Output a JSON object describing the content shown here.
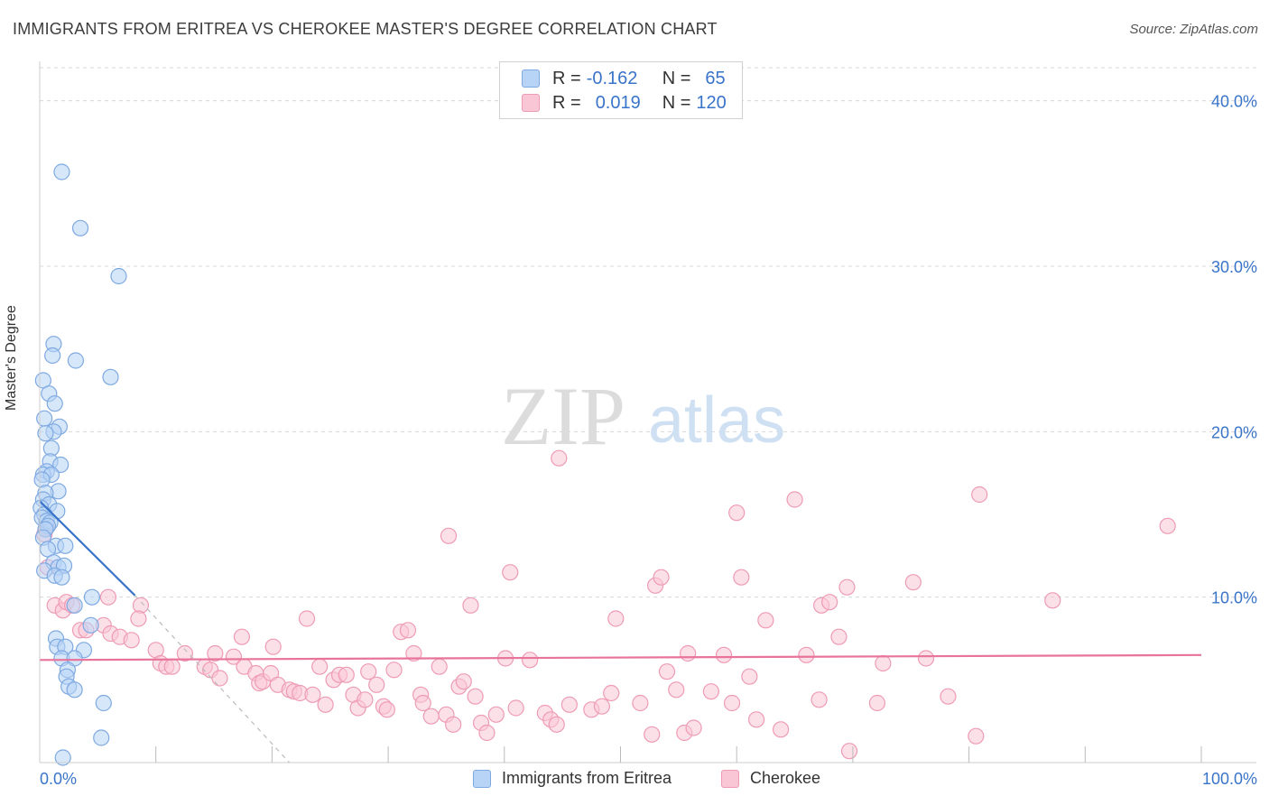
{
  "title": "IMMIGRANTS FROM ERITREA VS CHEROKEE MASTER'S DEGREE CORRELATION CHART",
  "source": "Source: ZipAtlas.com",
  "watermark": {
    "zip": "ZIP",
    "atlas": "atlas"
  },
  "legend": {
    "r_label": "R =",
    "n_label": "N =",
    "rows": [
      {
        "r": "-0.162",
        "n": "65",
        "fill": "#b7d3f6",
        "stroke": "#7ea9e1"
      },
      {
        "r": "0.019",
        "n": "120",
        "fill": "#f9c6d5",
        "stroke": "#ee9bb5"
      }
    ]
  },
  "bottom_legend": [
    {
      "label": "Immigrants from Eritrea",
      "fill": "#b7d3f6",
      "stroke": "#7ea9e1"
    },
    {
      "label": "Cherokee",
      "fill": "#f9c6d5",
      "stroke": "#ee9bb5"
    }
  ],
  "chart_data": {
    "type": "scatter",
    "ylabel": "Master's Degree",
    "xlim": [
      0,
      100
    ],
    "ylim": [
      0,
      42
    ],
    "x_tick_labels": [
      "0.0%",
      "100.0%"
    ],
    "y_ticks": [
      10,
      20,
      30,
      40
    ],
    "y_tick_labels": [
      "10.0%",
      "20.0%",
      "30.0%",
      "40.0%"
    ],
    "grid": true,
    "legend_placement": "top-center",
    "colors": {
      "blue": "#3a74c9",
      "pink": "#e8749b",
      "tick_text": "#3a74c9"
    },
    "series": [
      {
        "name": "Immigrants from Eritrea",
        "color": "#7ea9e1",
        "fill": "#b7d3f6",
        "points": [
          [
            1.9,
            35.7
          ],
          [
            3.5,
            32.3
          ],
          [
            6.8,
            29.4
          ],
          [
            1.2,
            25.3
          ],
          [
            1.1,
            24.6
          ],
          [
            3.1,
            24.3
          ],
          [
            6.1,
            23.3
          ],
          [
            0.3,
            23.1
          ],
          [
            0.8,
            22.3
          ],
          [
            1.3,
            21.7
          ],
          [
            0.4,
            20.8
          ],
          [
            1.7,
            20.3
          ],
          [
            1.2,
            20.0
          ],
          [
            0.5,
            19.9
          ],
          [
            1.0,
            19.0
          ],
          [
            0.9,
            18.2
          ],
          [
            1.8,
            18.0
          ],
          [
            0.6,
            17.6
          ],
          [
            0.3,
            17.4
          ],
          [
            1.0,
            17.4
          ],
          [
            0.2,
            17.1
          ],
          [
            1.6,
            16.4
          ],
          [
            0.5,
            16.3
          ],
          [
            0.3,
            15.9
          ],
          [
            0.8,
            15.6
          ],
          [
            0.1,
            15.4
          ],
          [
            1.5,
            15.2
          ],
          [
            0.4,
            15.0
          ],
          [
            0.2,
            14.8
          ],
          [
            0.6,
            14.6
          ],
          [
            0.9,
            14.5
          ],
          [
            0.7,
            14.3
          ],
          [
            0.5,
            14.1
          ],
          [
            0.3,
            13.6
          ],
          [
            1.4,
            13.1
          ],
          [
            2.2,
            13.1
          ],
          [
            0.7,
            12.9
          ],
          [
            1.2,
            12.1
          ],
          [
            1.6,
            11.8
          ],
          [
            2.1,
            11.9
          ],
          [
            0.4,
            11.6
          ],
          [
            1.3,
            11.3
          ],
          [
            1.9,
            11.2
          ],
          [
            4.5,
            10.0
          ],
          [
            3.0,
            9.5
          ],
          [
            4.4,
            8.3
          ],
          [
            1.4,
            7.5
          ],
          [
            1.5,
            7.0
          ],
          [
            2.2,
            7.0
          ],
          [
            3.8,
            6.8
          ],
          [
            1.9,
            6.3
          ],
          [
            3.0,
            6.3
          ],
          [
            2.4,
            5.6
          ],
          [
            2.3,
            5.2
          ],
          [
            2.5,
            4.6
          ],
          [
            3.0,
            4.4
          ],
          [
            5.5,
            3.6
          ],
          [
            5.3,
            1.5
          ],
          [
            2.0,
            0.3
          ]
        ]
      },
      {
        "name": "Cherokee",
        "color": "#ee9bb5",
        "fill": "#f9c6d5",
        "points": [
          [
            0.6,
            14.2
          ],
          [
            0.4,
            13.8
          ],
          [
            0.7,
            11.8
          ],
          [
            1.3,
            9.5
          ],
          [
            2.0,
            9.2
          ],
          [
            2.3,
            9.7
          ],
          [
            2.8,
            9.5
          ],
          [
            5.9,
            10.0
          ],
          [
            8.7,
            9.5
          ],
          [
            8.5,
            8.7
          ],
          [
            3.5,
            8.0
          ],
          [
            4.0,
            8.0
          ],
          [
            5.5,
            8.3
          ],
          [
            6.1,
            7.8
          ],
          [
            6.9,
            7.6
          ],
          [
            7.9,
            7.4
          ],
          [
            10.0,
            6.8
          ],
          [
            10.4,
            6.0
          ],
          [
            10.9,
            5.8
          ],
          [
            11.4,
            5.8
          ],
          [
            12.5,
            6.6
          ],
          [
            14.2,
            5.8
          ],
          [
            14.7,
            5.6
          ],
          [
            15.5,
            5.1
          ],
          [
            15.1,
            6.6
          ],
          [
            16.7,
            6.4
          ],
          [
            17.4,
            7.6
          ],
          [
            17.6,
            5.8
          ],
          [
            18.6,
            5.4
          ],
          [
            18.9,
            4.8
          ],
          [
            19.2,
            4.9
          ],
          [
            19.9,
            5.4
          ],
          [
            20.5,
            4.7
          ],
          [
            20.1,
            7.0
          ],
          [
            21.5,
            4.4
          ],
          [
            21.9,
            4.3
          ],
          [
            22.4,
            4.2
          ],
          [
            23.0,
            8.7
          ],
          [
            23.5,
            4.1
          ],
          [
            24.1,
            5.8
          ],
          [
            24.6,
            3.5
          ],
          [
            25.3,
            5.0
          ],
          [
            25.8,
            5.3
          ],
          [
            26.4,
            5.3
          ],
          [
            27.0,
            4.1
          ],
          [
            27.4,
            3.3
          ],
          [
            28.0,
            3.8
          ],
          [
            28.3,
            5.5
          ],
          [
            29.0,
            4.7
          ],
          [
            29.6,
            3.4
          ],
          [
            29.9,
            3.2
          ],
          [
            30.5,
            5.6
          ],
          [
            31.1,
            7.9
          ],
          [
            31.7,
            8.0
          ],
          [
            32.2,
            6.6
          ],
          [
            32.8,
            4.1
          ],
          [
            33.0,
            3.6
          ],
          [
            33.7,
            2.8
          ],
          [
            34.4,
            5.8
          ],
          [
            35.0,
            2.9
          ],
          [
            35.2,
            13.7
          ],
          [
            35.6,
            2.3
          ],
          [
            36.1,
            4.6
          ],
          [
            36.5,
            4.9
          ],
          [
            37.1,
            9.5
          ],
          [
            37.5,
            4.0
          ],
          [
            38.0,
            2.4
          ],
          [
            38.5,
            1.8
          ],
          [
            39.3,
            2.9
          ],
          [
            40.1,
            6.3
          ],
          [
            40.5,
            11.5
          ],
          [
            41.0,
            3.3
          ],
          [
            42.2,
            6.2
          ],
          [
            43.5,
            3.0
          ],
          [
            44.0,
            2.6
          ],
          [
            44.5,
            2.3
          ],
          [
            44.7,
            18.4
          ],
          [
            45.6,
            3.5
          ],
          [
            47.5,
            3.2
          ],
          [
            48.4,
            3.4
          ],
          [
            49.2,
            4.2
          ],
          [
            49.6,
            8.7
          ],
          [
            51.7,
            3.6
          ],
          [
            52.7,
            1.7
          ],
          [
            53.0,
            10.7
          ],
          [
            53.5,
            11.2
          ],
          [
            54.0,
            5.5
          ],
          [
            54.8,
            4.4
          ],
          [
            55.5,
            1.8
          ],
          [
            55.8,
            6.6
          ],
          [
            56.3,
            2.1
          ],
          [
            57.8,
            4.3
          ],
          [
            58.9,
            6.5
          ],
          [
            59.6,
            3.6
          ],
          [
            60.0,
            15.1
          ],
          [
            60.4,
            11.2
          ],
          [
            61.1,
            5.2
          ],
          [
            61.7,
            2.6
          ],
          [
            62.5,
            8.6
          ],
          [
            63.8,
            2.0
          ],
          [
            65.0,
            15.9
          ],
          [
            66.0,
            6.5
          ],
          [
            67.1,
            3.8
          ],
          [
            67.3,
            9.5
          ],
          [
            68.0,
            9.7
          ],
          [
            68.8,
            7.6
          ],
          [
            69.5,
            10.6
          ],
          [
            69.7,
            0.7
          ],
          [
            72.1,
            3.6
          ],
          [
            72.6,
            6.0
          ],
          [
            75.2,
            10.9
          ],
          [
            76.3,
            6.3
          ],
          [
            78.2,
            4.0
          ],
          [
            80.6,
            1.6
          ],
          [
            80.9,
            16.2
          ],
          [
            87.2,
            9.8
          ],
          [
            97.1,
            14.3
          ]
        ]
      }
    ],
    "trend_lines": [
      {
        "series": "Immigrants from Eritrea",
        "x": [
          0,
          8.2
        ],
        "y": [
          15.8,
          10.1
        ],
        "dashed_extension_to": [
          21.5,
          0
        ]
      },
      {
        "series": "Cherokee",
        "x": [
          0,
          100
        ],
        "y": [
          6.2,
          6.5
        ]
      }
    ]
  }
}
